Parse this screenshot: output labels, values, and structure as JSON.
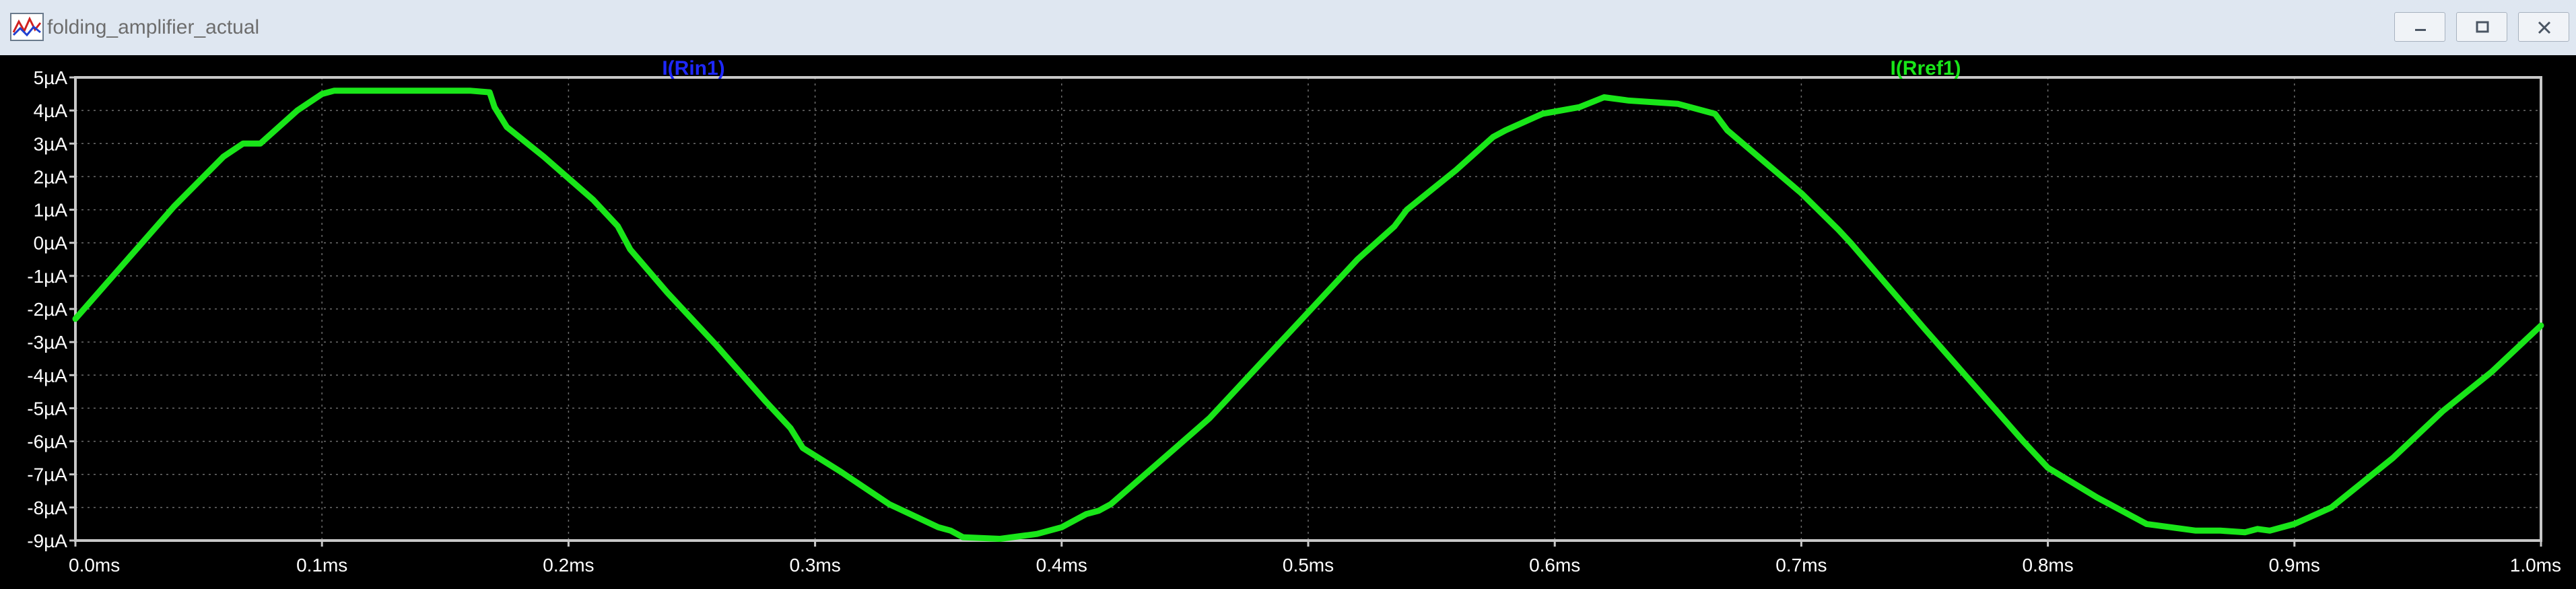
{
  "window": {
    "title": "folding_amplifier_actual"
  },
  "colors": {
    "trace_rin1": "#1e28ff",
    "trace_rref1": "#19e619",
    "background": "#000000",
    "axis": "#c8c8c8"
  },
  "chart_data": {
    "type": "line",
    "title": "",
    "xlabel": "",
    "ylabel": "",
    "xlim": [
      0,
      1.0
    ],
    "ylim": [
      -9,
      5
    ],
    "x_unit": "ms",
    "y_unit": "µA",
    "grid": true,
    "x_ticks": [
      "0.0ms",
      "0.1ms",
      "0.2ms",
      "0.3ms",
      "0.4ms",
      "0.5ms",
      "0.6ms",
      "0.7ms",
      "0.8ms",
      "0.9ms",
      "1.0ms"
    ],
    "y_ticks": [
      "5µA",
      "4µA",
      "3µA",
      "2µA",
      "1µA",
      "0µA",
      "-1µA",
      "-2µA",
      "-3µA",
      "-4µA",
      "-5µA",
      "-6µA",
      "-7µA",
      "-8µA",
      "-9µA"
    ],
    "series": [
      {
        "name": "I(Rin1)",
        "color": "#1e28ff",
        "x": [],
        "values": []
      },
      {
        "name": "I(Rref1)",
        "color": "#19e619",
        "x": [
          0.0,
          0.02,
          0.04,
          0.06,
          0.068,
          0.075,
          0.09,
          0.1,
          0.105,
          0.12,
          0.14,
          0.16,
          0.168,
          0.17,
          0.175,
          0.19,
          0.21,
          0.22,
          0.225,
          0.24,
          0.26,
          0.28,
          0.29,
          0.295,
          0.31,
          0.33,
          0.35,
          0.355,
          0.36,
          0.375,
          0.39,
          0.4,
          0.41,
          0.415,
          0.42,
          0.44,
          0.46,
          0.47,
          0.48,
          0.5,
          0.52,
          0.535,
          0.54,
          0.56,
          0.575,
          0.58,
          0.595,
          0.61,
          0.62,
          0.63,
          0.65,
          0.665,
          0.67,
          0.7,
          0.715,
          0.72,
          0.75,
          0.79,
          0.8,
          0.82,
          0.84,
          0.86,
          0.87,
          0.88,
          0.885,
          0.89,
          0.9,
          0.915,
          0.92,
          0.94,
          0.96,
          0.98,
          1.0
        ],
        "values": [
          -2.3,
          -0.6,
          1.1,
          2.6,
          3.0,
          3.0,
          4.0,
          4.5,
          4.6,
          4.6,
          4.6,
          4.6,
          4.55,
          4.1,
          3.5,
          2.6,
          1.3,
          0.5,
          -0.2,
          -1.5,
          -3.1,
          -4.8,
          -5.6,
          -6.2,
          -6.9,
          -7.9,
          -8.6,
          -8.7,
          -8.9,
          -8.95,
          -8.8,
          -8.6,
          -8.2,
          -8.1,
          -7.9,
          -6.6,
          -5.3,
          -4.5,
          -3.7,
          -2.1,
          -0.5,
          0.5,
          1.0,
          2.2,
          3.2,
          3.4,
          3.9,
          4.1,
          4.4,
          4.3,
          4.2,
          3.9,
          3.4,
          1.5,
          0.4,
          0.0,
          -2.6,
          -6.0,
          -6.8,
          -7.7,
          -8.5,
          -8.7,
          -8.7,
          -8.75,
          -8.65,
          -8.7,
          -8.5,
          -8.0,
          -7.7,
          -6.5,
          -5.1,
          -3.9,
          -2.5
        ]
      }
    ]
  }
}
